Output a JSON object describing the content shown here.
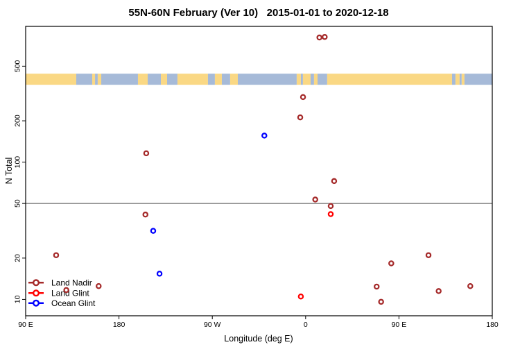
{
  "chart_data": {
    "type": "scatter",
    "title": "55N-60N February (Ver 10)   2015-01-01 to 2020-12-18",
    "xlabel": "Longitude (deg E)",
    "ylabel": "N Total",
    "x_axis": {
      "range": [
        90,
        540
      ],
      "ticks": [
        {
          "value": 90,
          "label": "90 E"
        },
        {
          "value": 180,
          "label": "180"
        },
        {
          "value": 270,
          "label": "90 W"
        },
        {
          "value": 360,
          "label": "0"
        },
        {
          "value": 450,
          "label": "90 E"
        },
        {
          "value": 540,
          "label": "180"
        }
      ]
    },
    "y_axis": {
      "scale": "log",
      "range": [
        7.6,
        975
      ],
      "ticks": [
        {
          "value": 10,
          "label": "10"
        },
        {
          "value": 20,
          "label": "20"
        },
        {
          "value": 50,
          "label": "50"
        },
        {
          "value": 100,
          "label": "100"
        },
        {
          "value": 200,
          "label": "200"
        },
        {
          "value": 500,
          "label": "500"
        }
      ]
    },
    "reference_line": {
      "value": 50,
      "color": "#808080"
    },
    "land_ocean_strip": {
      "top_value": 441,
      "bottom_value": 366,
      "land_color": "#FAD884",
      "ocean_color": "#A6BAD8",
      "segments": [
        {
          "from": 90,
          "to": 138.8,
          "surface": "land"
        },
        {
          "from": 138.8,
          "to": 154.2,
          "surface": "ocean"
        },
        {
          "from": 154.2,
          "to": 156.9,
          "surface": "land"
        },
        {
          "from": 156.9,
          "to": 159.5,
          "surface": "ocean"
        },
        {
          "from": 159.5,
          "to": 162.9,
          "surface": "land"
        },
        {
          "from": 162.9,
          "to": 198.3,
          "surface": "ocean"
        },
        {
          "from": 198.3,
          "to": 207.7,
          "surface": "land"
        },
        {
          "from": 207.7,
          "to": 220.4,
          "surface": "ocean"
        },
        {
          "from": 220.4,
          "to": 226.4,
          "surface": "land"
        },
        {
          "from": 226.4,
          "to": 236.4,
          "surface": "ocean"
        },
        {
          "from": 236.4,
          "to": 265.8,
          "surface": "land"
        },
        {
          "from": 265.8,
          "to": 272.5,
          "surface": "ocean"
        },
        {
          "from": 272.5,
          "to": 279.2,
          "surface": "land"
        },
        {
          "from": 279.2,
          "to": 287.2,
          "surface": "ocean"
        },
        {
          "from": 287.2,
          "to": 294.6,
          "surface": "land"
        },
        {
          "from": 294.6,
          "to": 351.4,
          "surface": "ocean"
        },
        {
          "from": 351.4,
          "to": 355.4,
          "surface": "land"
        },
        {
          "from": 355.4,
          "to": 357.4,
          "surface": "ocean"
        },
        {
          "from": 357.4,
          "to": 364.8,
          "surface": "land"
        },
        {
          "from": 364.8,
          "to": 368.1,
          "surface": "ocean"
        },
        {
          "from": 368.1,
          "to": 371.5,
          "surface": "land"
        },
        {
          "from": 371.5,
          "to": 380.8,
          "surface": "ocean"
        },
        {
          "from": 380.8,
          "to": 501.2,
          "surface": "land"
        },
        {
          "from": 501.2,
          "to": 504.5,
          "surface": "ocean"
        },
        {
          "from": 504.5,
          "to": 508.5,
          "surface": "land"
        },
        {
          "from": 508.5,
          "to": 510.5,
          "surface": "ocean"
        },
        {
          "from": 510.5,
          "to": 513.2,
          "surface": "land"
        },
        {
          "from": 513.2,
          "to": 540,
          "surface": "ocean"
        }
      ]
    },
    "series": [
      {
        "name": "Land Nadir",
        "color": "#A52A2A",
        "points": [
          [
            119.4,
            21
          ],
          [
            129.2,
            11.7
          ],
          [
            160.4,
            12.5
          ],
          [
            206.3,
            116
          ],
          [
            205.5,
            41.5
          ],
          [
            354.8,
            212
          ],
          [
            357.5,
            298
          ],
          [
            373.3,
            809
          ],
          [
            378.4,
            816
          ],
          [
            369.3,
            53.4
          ],
          [
            384.2,
            47.9
          ],
          [
            387.5,
            72.8
          ],
          [
            428.5,
            12.4
          ],
          [
            432.8,
            9.6
          ],
          [
            442.6,
            18.3
          ],
          [
            478.5,
            21
          ],
          [
            488.3,
            11.5
          ],
          [
            518.8,
            12.5
          ]
        ]
      },
      {
        "name": "Land Glint",
        "color": "#FF0000",
        "points": [
          [
            355.4,
            10.5
          ],
          [
            384.2,
            41.8
          ]
        ]
      },
      {
        "name": "Ocean Glint",
        "color": "#0000FF",
        "points": [
          [
            320.2,
            156
          ],
          [
            213.0,
            31.6
          ],
          [
            219.1,
            15.4
          ]
        ]
      }
    ],
    "legend": {
      "position": "bottom-left",
      "items": [
        {
          "label": "Land Nadir",
          "color": "#A52A2A"
        },
        {
          "label": "Land Glint",
          "color": "#FF0000"
        },
        {
          "label": "Ocean Glint",
          "color": "#0000FF"
        }
      ]
    }
  }
}
